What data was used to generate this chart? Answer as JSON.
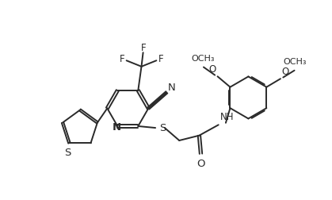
{
  "bg_color": "#ffffff",
  "line_color": "#2a2a2a",
  "line_width": 1.4,
  "font_size": 8.5,
  "fig_width": 4.19,
  "fig_height": 2.52,
  "dpi": 100,
  "xlim": [
    0,
    10
  ],
  "ylim": [
    0,
    6
  ]
}
